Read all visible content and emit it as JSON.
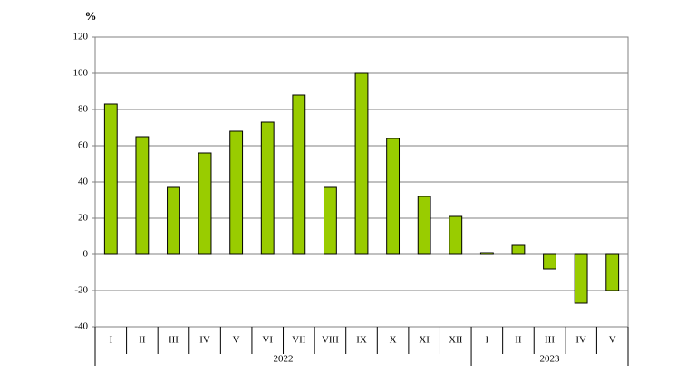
{
  "chart_data": {
    "type": "bar",
    "y_label": "%",
    "groups": [
      {
        "name": "2022",
        "categories": [
          "I",
          "II",
          "III",
          "IV",
          "V",
          "VI",
          "VII",
          "VIII",
          "IX",
          "X",
          "XI",
          "XII"
        ],
        "values": [
          83,
          65,
          37,
          56,
          68,
          73,
          88,
          37,
          100,
          64,
          32,
          21
        ]
      },
      {
        "name": "2023",
        "categories": [
          "I",
          "II",
          "III",
          "IV",
          "V"
        ],
        "values": [
          1,
          5,
          -8,
          -27,
          -20
        ]
      }
    ],
    "color": "#99cc00",
    "ylim": [
      -40,
      120
    ],
    "yticks": [
      -40,
      -20,
      0,
      20,
      40,
      60,
      80,
      100,
      120
    ],
    "grid": true
  }
}
